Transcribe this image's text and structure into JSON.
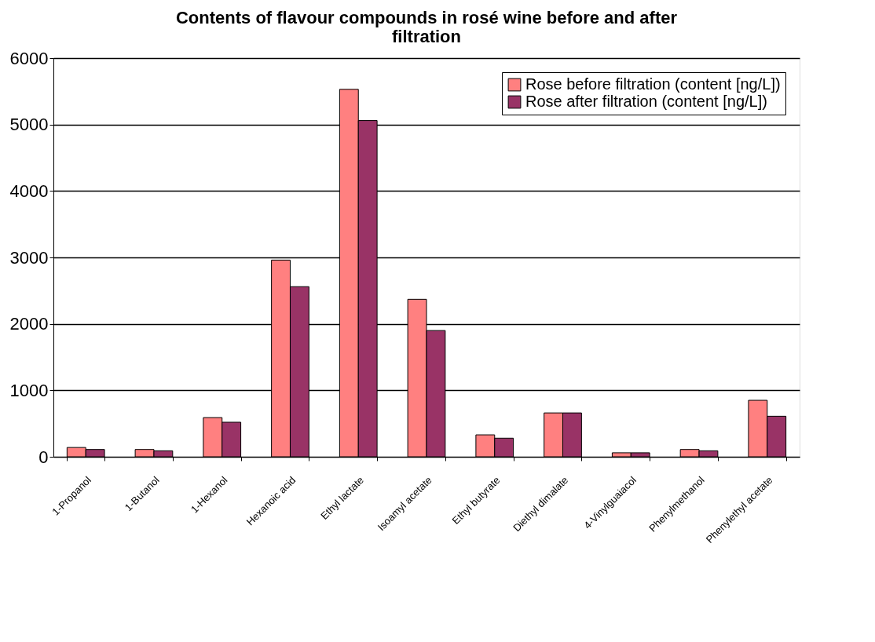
{
  "chart_data": {
    "type": "bar",
    "title": "Contents of flavour compounds in rosé wine before and after filtration",
    "categories": [
      "1-Propanol",
      "1-Butanol",
      "1-Hexanol",
      "Hexanoic acid",
      "Ethyl lactate",
      "Isoamyl acetate",
      "Ethyl butyrate",
      "Diethyl dimalate",
      "4-Vinylguaiacol",
      "Phenylmethanol",
      "Phenylethyl acetate"
    ],
    "series": [
      {
        "name": "Rose before filtration (content [ng/L])",
        "color": "#ff8080",
        "values": [
          140,
          110,
          590,
          2960,
          5530,
          2370,
          330,
          660,
          60,
          110,
          850
        ]
      },
      {
        "name": "Rose after filtration (content [ng/L])",
        "color": "#993366",
        "values": [
          110,
          90,
          520,
          2560,
          5060,
          1900,
          280,
          660,
          60,
          90,
          610
        ]
      }
    ],
    "ylim": [
      0,
      6000
    ],
    "yticks": [
      0,
      1000,
      2000,
      3000,
      4000,
      5000,
      6000
    ],
    "grid": "y",
    "legend": "top right"
  }
}
